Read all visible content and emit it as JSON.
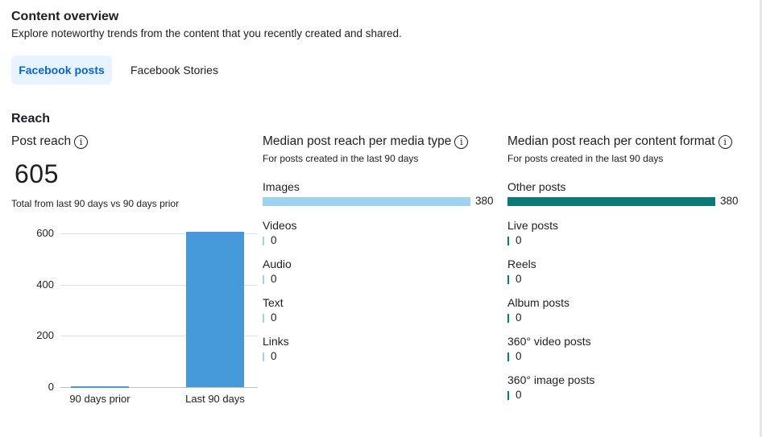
{
  "header": {
    "title": "Content overview",
    "subtitle": "Explore noteworthy trends from the content that you recently created and shared."
  },
  "tabs": [
    {
      "label": "Facebook posts",
      "active": true
    },
    {
      "label": "Facebook Stories",
      "active": false
    }
  ],
  "reach": {
    "title": "Reach",
    "post_reach": {
      "title": "Post reach",
      "value": "605",
      "note": "Total from last 90 days vs 90 days prior"
    },
    "media_type": {
      "title": "Median post reach per media type",
      "subtitle": "For posts created in the last 90 days",
      "color": "#9dd3f0",
      "rows": [
        {
          "label": "Images",
          "value": 380
        },
        {
          "label": "Videos",
          "value": 0
        },
        {
          "label": "Audio",
          "value": 0
        },
        {
          "label": "Text",
          "value": 0
        },
        {
          "label": "Links",
          "value": 0
        }
      ]
    },
    "content_format": {
      "title": "Median post reach per content format",
      "subtitle": "For posts created in the last 90 days",
      "color": "#0a7a78",
      "rows": [
        {
          "label": "Other posts",
          "value": 380
        },
        {
          "label": "Live posts",
          "value": 0
        },
        {
          "label": "Reels",
          "value": 0
        },
        {
          "label": "Album posts",
          "value": 0
        },
        {
          "label": "360° video posts",
          "value": 0
        },
        {
          "label": "360° image posts",
          "value": 0
        }
      ]
    }
  },
  "chart_data": {
    "type": "bar",
    "categories": [
      "90 days prior",
      "Last 90 days"
    ],
    "values": [
      2,
      605
    ],
    "ylim": [
      0,
      600
    ],
    "yticks": [
      "0",
      "200",
      "400",
      "600"
    ],
    "color": "#4599d8",
    "grid": true
  },
  "icons": {
    "info": "info-icon"
  }
}
